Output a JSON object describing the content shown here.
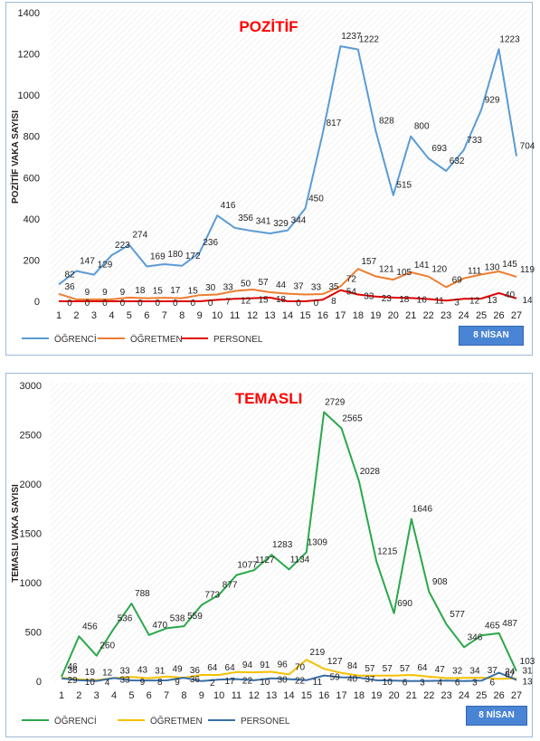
{
  "chart_data": [
    {
      "type": "line",
      "title": "POZİTİF",
      "xlabel": "",
      "ylabel": "POZİTİF VAKA SAYISI",
      "ylim": [
        0,
        1400
      ],
      "yticks": [
        0,
        200,
        400,
        600,
        800,
        1000,
        1200,
        1400
      ],
      "categories": [
        "1",
        "2",
        "3",
        "4",
        "5",
        "6",
        "7",
        "8",
        "9",
        "10",
        "11",
        "12",
        "13",
        "14",
        "15",
        "16",
        "17",
        "18",
        "19",
        "20",
        "21",
        "22",
        "23",
        "24",
        "25",
        "26",
        "27"
      ],
      "grid": false,
      "legend_position": "bottom-left",
      "date_tag": "8 NİSAN",
      "series": [
        {
          "name": "ÖĞRENCİ",
          "color": "#5b9bd5",
          "values": [
            82,
            147,
            129,
            223,
            274,
            169,
            180,
            172,
            236,
            416,
            356,
            341,
            329,
            344,
            450,
            817,
            1237,
            1222,
            828,
            515,
            800,
            693,
            632,
            733,
            929,
            1223,
            704
          ]
        },
        {
          "name": "ÖĞRETMEN",
          "color": "#ed7d31",
          "values": [
            36,
            9,
            9,
            9,
            18,
            15,
            17,
            15,
            30,
            33,
            50,
            57,
            44,
            37,
            33,
            35,
            72,
            157,
            121,
            105,
            141,
            120,
            69,
            111,
            130,
            145,
            119
          ]
        },
        {
          "name": "PERSONEL",
          "color": "#e00000",
          "values": [
            0,
            0,
            0,
            0,
            0,
            0,
            0,
            0,
            0,
            7,
            12,
            15,
            18,
            0,
            0,
            8,
            54,
            33,
            23,
            18,
            16,
            11,
            3,
            12,
            13,
            40,
            14
          ]
        }
      ]
    },
    {
      "type": "line",
      "title": "TEMASLI",
      "xlabel": "",
      "ylabel": "TEMASLI VAKA SAYISI",
      "ylim": [
        0,
        3000
      ],
      "yticks": [
        0,
        500,
        1000,
        1500,
        2000,
        2500,
        3000
      ],
      "categories": [
        "1",
        "2",
        "3",
        "4",
        "5",
        "6",
        "7",
        "8",
        "9",
        "10",
        "11",
        "12",
        "13",
        "14",
        "15",
        "16",
        "17",
        "18",
        "19",
        "20",
        "21",
        "22",
        "23",
        "24",
        "25",
        "26",
        "27"
      ],
      "grid": false,
      "legend_position": "bottom-left",
      "date_tag": "8 NİSAN",
      "series": [
        {
          "name": "ÖĞRENCİ",
          "color": "#2ba84a",
          "values": [
            46,
            456,
            260,
            536,
            788,
            470,
            538,
            559,
            773,
            877,
            1077,
            1127,
            1283,
            1134,
            1309,
            2729,
            2565,
            2028,
            1215,
            690,
            1646,
            908,
            577,
            346,
            465,
            487,
            103
          ]
        },
        {
          "name": "ÖĞRETMEN",
          "color": "#f5c000",
          "values": [
            36,
            19,
            12,
            33,
            43,
            31,
            49,
            36,
            64,
            64,
            94,
            91,
            96,
            70,
            219,
            127,
            84,
            57,
            57,
            57,
            64,
            47,
            32,
            34,
            37,
            24,
            31
          ]
        },
        {
          "name": "PERSONEL",
          "color": "#3a6ea5",
          "values": [
            29,
            10,
            4,
            33,
            9,
            8,
            9,
            36,
            2,
            17,
            22,
            10,
            30,
            22,
            11,
            59,
            40,
            37,
            10,
            6,
            3,
            4,
            6,
            3,
            6,
            87,
            13
          ]
        }
      ]
    }
  ]
}
